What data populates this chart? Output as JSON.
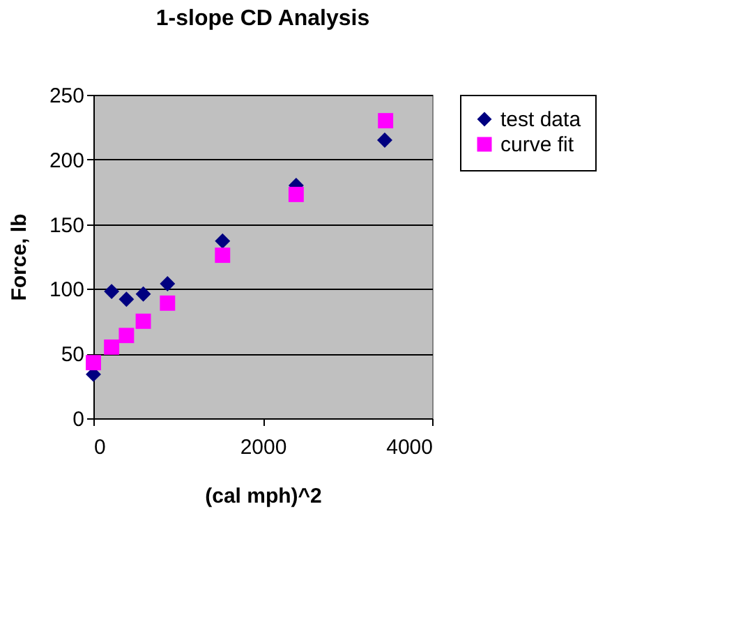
{
  "chart_data": {
    "type": "scatter",
    "title": "1-slope CD Analysis",
    "xlabel": "(cal mph)^2",
    "ylabel": "Force, lb",
    "xlim": [
      0,
      4000
    ],
    "xticks": [
      0,
      2000,
      4000
    ],
    "ylim": [
      0,
      250
    ],
    "yticks": [
      0,
      50,
      100,
      150,
      200,
      250
    ],
    "grid": "y",
    "legend": "right",
    "series": [
      {
        "name": "test data",
        "color": "#000080",
        "marker": "diamond",
        "x": [
          0,
          215,
          390,
          589,
          875,
          1525,
          2394,
          3440
        ],
        "values": [
          34,
          98,
          92,
          96,
          104,
          137,
          180,
          215
        ]
      },
      {
        "name": "curve fit",
        "color": "#ff00ff",
        "marker": "square",
        "x": [
          0,
          215,
          390,
          589,
          875,
          1525,
          2394,
          3450
        ],
        "values": [
          43,
          55,
          64,
          75,
          89,
          126,
          173,
          230
        ]
      }
    ]
  }
}
